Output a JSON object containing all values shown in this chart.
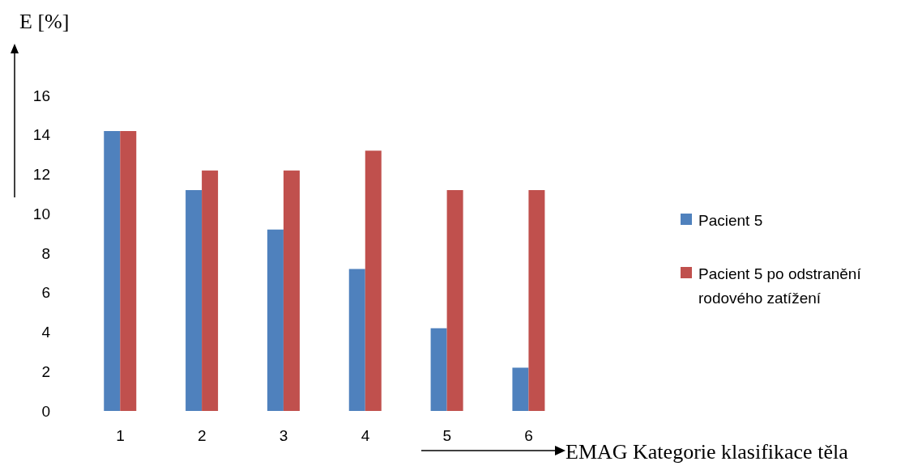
{
  "chart_data": {
    "type": "bar",
    "ylabel": "E [%]",
    "xlabel": "EMAG Kategorie klasifikace těla",
    "categories": [
      "1",
      "2",
      "3",
      "4",
      "5",
      "6"
    ],
    "series": [
      {
        "name": "Pacient 5",
        "color": "#4f81bd",
        "values": [
          14.2,
          11.2,
          9.2,
          7.2,
          4.2,
          2.2
        ]
      },
      {
        "name": "Pacient 5 po odstranění rodového zatížení",
        "color": "#c0504d",
        "values": [
          14.2,
          12.2,
          12.2,
          13.2,
          11.2,
          11.2
        ]
      }
    ],
    "ylim": [
      0,
      16
    ],
    "yticks": [
      0,
      2,
      4,
      6,
      8,
      10,
      12,
      14,
      16
    ],
    "grid": false,
    "legend": "right"
  }
}
